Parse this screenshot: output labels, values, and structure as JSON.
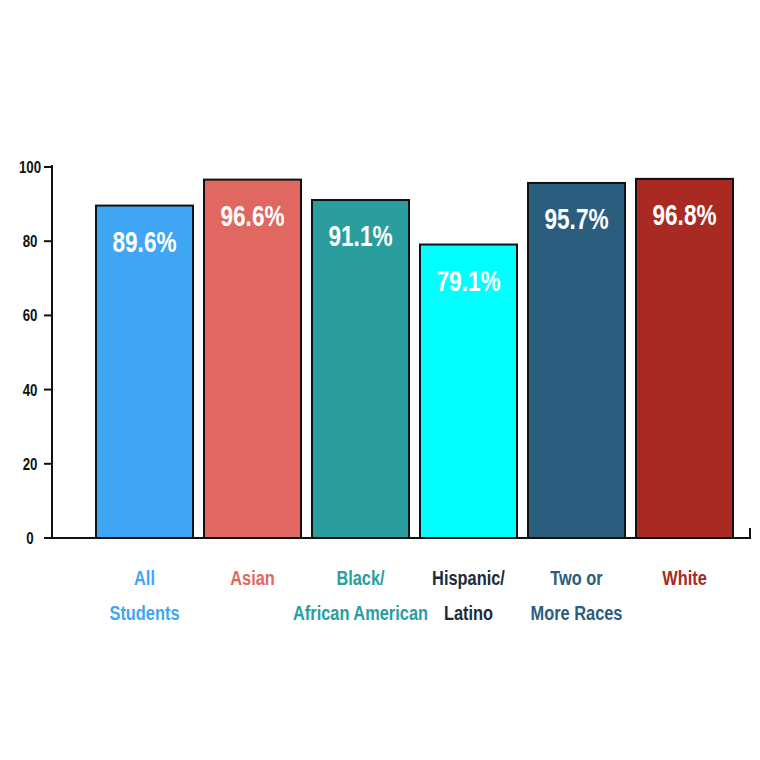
{
  "chart_data": {
    "type": "bar",
    "categories": [
      "All Students",
      "Asian",
      "Black/ African American",
      "Hispanic/ Latino",
      "Two or More Races",
      "White"
    ],
    "values": [
      89.6,
      96.6,
      91.1,
      79.1,
      95.7,
      96.8
    ],
    "value_labels": [
      "89.6%",
      "96.6%",
      "91.1%",
      "79.1%",
      "95.7%",
      "96.8%"
    ],
    "colors": [
      "#3ea6f5",
      "#e06860",
      "#2a9d9e",
      "#00ffff",
      "#2a5d7e",
      "#a82a22"
    ],
    "ylim": [
      0,
      100
    ],
    "yticks": [
      0,
      20,
      40,
      60,
      80,
      100
    ],
    "grid": false,
    "data_labels": true
  }
}
